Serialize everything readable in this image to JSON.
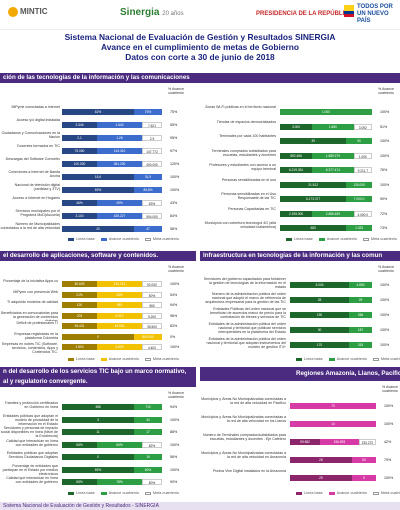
{
  "header": {
    "logo_mintic": "MINTIC",
    "logo_sinergia": "Sinergia",
    "logo_sinergia_sub": "20 años",
    "logo_presidencia": "PRESIDENCIA DE LA REPÚBLICA",
    "logo_nuevo": "TODOS POR UN NUEVO PAÍS"
  },
  "titles": {
    "line1": "Sistema Nacional de Evaluación de Gestión y Resultados SINERGIA",
    "line2": "Avance en el cumplimiento de metas de Gobierno",
    "line3": "Datos con corte a 30 de junio de 2018"
  },
  "sections": {
    "s1": "ción de las tecnologías de la información y las comunicaciones",
    "s2": "el desarrollo de aplicaciones, software y contenidos.",
    "s3": "Infraestructura en tecnologías de la información y las comun",
    "s4": "n del desarrollo de los servicios TIC bajo un marco normativo,",
    "s4b": "al y regulatorio convergente.",
    "s5": "Regiones Amazonía, Llanos, Pacífico y E"
  },
  "column_head": "% Avance\ncuatrienio",
  "legend": {
    "base": "Línea base",
    "avance": "Avance cuatrienio",
    "meta": "Meta cuatrienio"
  },
  "colors": {
    "purple": "#4a2b7f",
    "blue": "#3d6dcc",
    "green": "#2e9e44",
    "yellow": "#f2c200",
    "magenta": "#d63aa5"
  },
  "p1": {
    "rows": [
      {
        "label": "MiPyme conectadas a Internet",
        "v": [
          "62%",
          "75%"
        ],
        "pct": "75%"
      },
      {
        "label": "Acceso y/o digital instalada",
        "v": [
          "3.346",
          "1.640",
          "7.621"
        ],
        "pct": "55%"
      },
      {
        "label": "Ciudadanos y Comunicaciones en la Nación",
        "v": [
          "2,1",
          "1,26",
          "2,9"
        ],
        "pct": "95%"
      },
      {
        "label": "Docentes formados en TIC",
        "v": [
          "75.060",
          "143.310",
          "147.772"
        ],
        "pct": "97%"
      },
      {
        "label": "Descargas del Software Convertic",
        "v": [
          "100.000",
          "361.230",
          "400.000"
        ],
        "pct": "120%"
      },
      {
        "label": "Conexiones a Internet de Banda Ancha",
        "v": [
          "15,6",
          "31,9"
        ],
        "pct": "100%"
      },
      {
        "label": "Nacional de televisión digital (cantidad y 3TV)",
        "v": [
          "69%",
          "85,8%"
        ],
        "pct": "100%"
      },
      {
        "label": "Acceso a Internet en Hogares",
        "v": [
          "46%",
          "49%",
          "63%"
        ],
        "pct": "43%"
      },
      {
        "label": "Servicios municipales por el Programa MoD(Ascuela)",
        "v": [
          "3.100",
          "425.227",
          "504.000"
        ],
        "pct": "84%"
      },
      {
        "label": "Número de Municipalidades conectados a la red de alta velocidad",
        "v": [
          "20",
          "47"
        ],
        "pct": "56%"
      }
    ]
  },
  "p2": {
    "rows": [
      {
        "label": "Zonas Wi-Fi públicas en el territorio nacional",
        "v": [
          "1.000"
        ],
        "pct": "100%"
      },
      {
        "label": "Tiendas de espacios democratizados",
        "v": [
          "3.000",
          "1.880",
          "3.092"
        ],
        "pct": "51%"
      },
      {
        "label": "Terminales por cada 100 habitantes",
        "v": [
          "39",
          "50"
        ],
        "pct": "100%"
      },
      {
        "label": "Terminales comprados subsidiados para escuelas, estudiantes y docentes",
        "v": [
          "892.456",
          "1.689.279",
          "1.000"
        ],
        "pct": "100%"
      },
      {
        "label": "Profesores y estudiantes con acceso a un equipo terminal",
        "v": [
          "6.219.351",
          "6.377.474",
          "9.211.7"
        ],
        "pct": "76%"
      },
      {
        "label": "Personas sensibilizadas en el uso",
        "v": [
          "21.512",
          "135.000"
        ],
        "pct": "100%"
      },
      {
        "label": "Personas sensibilizadas en el Uso Responsable de las TIC",
        "v": [
          "6.173.377",
          "7.000.0"
        ],
        "pct": "90%"
      },
      {
        "label": "Personas Capacitadas en TIC",
        "v": [
          "2.195.000",
          "2.886.639",
          "4.000.0"
        ],
        "pct": "72%"
      },
      {
        "label": "Municipios con cobertura tecnología 4G (alta velocidad inalámbrica)",
        "v": [
          "680",
          "1.025"
        ],
        "pct": "73%"
      }
    ]
  },
  "p3": {
    "rows": [
      {
        "label": "Porcentaje de la Iniciativa Apps.co",
        "v": [
          "50.809",
          "120.213",
          "92.000"
        ],
        "pct": "100%"
      },
      {
        "label": "MiPyme con presencia Web",
        "v": [
          "21%",
          "33%",
          "50%"
        ],
        "pct": "54%"
      },
      {
        "label": "TI adquirido modelos de calidad",
        "v": [
          "120",
          "553",
          "560"
        ],
        "pct": "94%"
      },
      {
        "label": "Beneficiados en convocatorias para la generación de contenidos digitales",
        "v": [
          "203",
          "5.012",
          "5.200"
        ],
        "pct": "96%"
      },
      {
        "label": "Déficit de profesionales TI",
        "v": [
          "94.431",
          "45.530",
          "35.500"
        ],
        "pct": "83%"
      },
      {
        "label": "Empresas registradas en la plataforma Colombia",
        "v": [
          "0",
          "800.000"
        ],
        "pct": "0%"
      },
      {
        "label": "Empresas en nubes TIC (Software, servicios, contenidos, Apps y Contenidos TIC, Telecomunicaciones o...)",
        "v": [
          "1.800",
          "6.899",
          "4.400"
        ],
        "pct": "100%"
      }
    ]
  },
  "p4": {
    "rows": [
      {
        "label": "Servidores del gobierno capacitados para fortalecer la gestión de tecnologías de la información en el estado",
        "v": [
          "3.004",
          "4.850"
        ],
        "pct": "100%"
      },
      {
        "label": "Número de la administración pública del orden nacional que adoptó el marco de referencia de arquitectura empresarial para la gestión de las TIC",
        "v": [
          "28",
          "29"
        ],
        "pct": "100%"
      },
      {
        "label": "Entidades Públicas del orden nacional que se benefician de acuerdos marco de precio para la contratación de bienes y servicios de TIC",
        "v": [
          "190",
          "266"
        ],
        "pct": "100%"
      },
      {
        "label": "Entidades de la administración pública del orden nacional y territorial que publican servicios interoperables en la plataforma del Estado",
        "v": [
          "30",
          "187"
        ],
        "pct": "100%"
      },
      {
        "label": "Entidades de la administración pública del orden nacional y territorial que adoptan instrumentos del modelo de gestión IT4+",
        "v": [
          "170",
          "315"
        ],
        "pct": "100%"
      }
    ]
  },
  "p5": {
    "rows": [
      {
        "label": "Trámites y protección certificados en Gobierno en línea",
        "v": [
          "388",
          "710"
        ],
        "pct": "94%"
      },
      {
        "label": "Entidades públicas que adoptan el modelo de privacidad de la información en el Estado",
        "v": [
          "3",
          "34"
        ],
        "pct": "100%"
      },
      {
        "label": "Servidores y personas de impacto social disponibles en línea (Nivel de la Excelencia)",
        "v": [
          "11",
          "17"
        ],
        "pct": "88%"
      },
      {
        "label": "Calidad que interactúan en línea con entidades de gobierno",
        "v": [
          "65%",
          "65%",
          "82%"
        ],
        "pct": "100%"
      },
      {
        "label": "Entidades públicas que adoptan Servicios Ciudadanos Digitales",
        "v": [
          "0",
          "19"
        ],
        "pct": "56%"
      },
      {
        "label": "Porcentaje de entidades que participan en el Estado por medios electrónicos",
        "v": [
          "65%",
          "80%"
        ],
        "pct": "100%"
      },
      {
        "label": "Calidad que interactúan en línea con entidades de gobierno",
        "v": [
          "65%",
          "78%",
          "80%"
        ],
        "pct": "90%"
      }
    ]
  },
  "p6": {
    "rows": [
      {
        "label": "Municipios y Áreas No Municipalizadas conectadas a la red de alta velocidad en Pacífico",
        "v": [
          "73"
        ],
        "pct": "100%"
      },
      {
        "label": "Municipios y Áreas No Municipalizadas conectadas a la red de alta velocidad en los Llanos",
        "v": [
          "14"
        ],
        "pct": "100%"
      },
      {
        "label": "Número de Terminales comprados/subsidiados para escuelas, estudiantes y docentes - Eje Cafetero",
        "v": [
          "99.582",
          "156.893",
          "233.272"
        ],
        "pct": "42%"
      },
      {
        "label": "Municipios y Áreas No Municipalizadas conectadas a la red de alta velocidad en Amazonía",
        "v": [
          "28",
          "50"
        ],
        "pct": "79%"
      },
      {
        "label": "Puntos Vive Digital instalados en la Amazonía",
        "v": [
          "29",
          "5"
        ],
        "pct": "100%"
      }
    ]
  },
  "footer": {
    "text": "Sistema Nacional de Evaluación de Gestión y Resultados - SINERGIA"
  }
}
